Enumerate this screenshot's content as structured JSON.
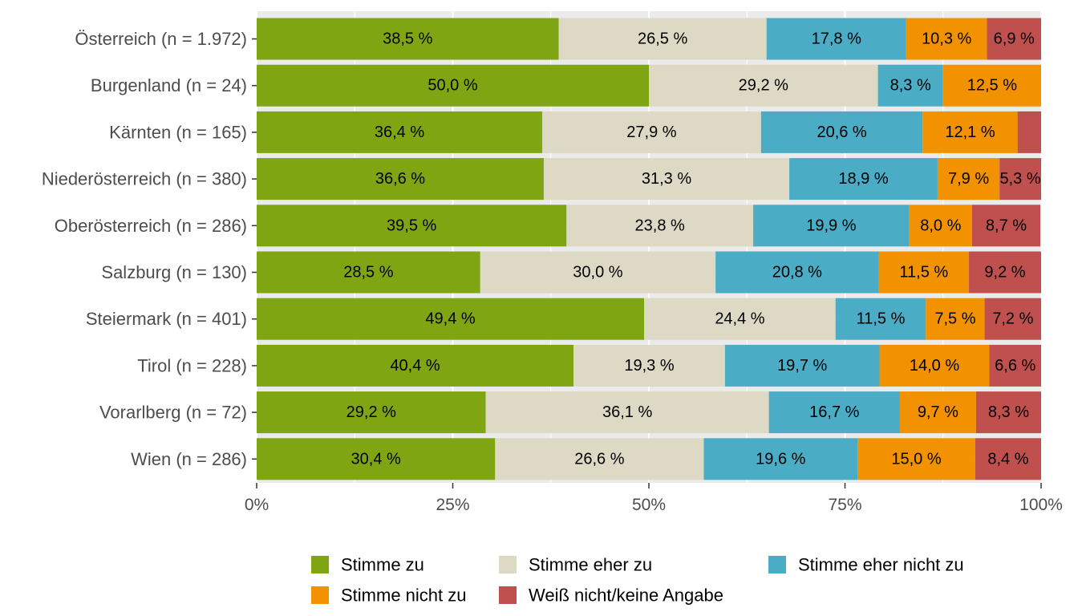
{
  "chart_data": {
    "type": "bar",
    "orientation": "horizontal",
    "stacked": true,
    "normalized": true,
    "categories": [
      "Österreich (n = 1.972)",
      "Burgenland (n = 24)",
      "Kärnten (n = 165)",
      "Niederösterreich (n = 380)",
      "Oberösterreich (n = 286)",
      "Salzburg (n = 130)",
      "Steiermark (n = 401)",
      "Tirol (n = 228)",
      "Vorarlberg (n = 72)",
      "Wien (n = 286)"
    ],
    "series": [
      {
        "name": "Stimme zu",
        "color": "#7fa512",
        "values": [
          38.5,
          50.0,
          36.4,
          36.6,
          39.5,
          28.5,
          49.4,
          40.4,
          29.2,
          30.4
        ],
        "labels": [
          "38,5 %",
          "50,0 %",
          "36,4 %",
          "36,6 %",
          "39,5 %",
          "28,5 %",
          "49,4 %",
          "40,4 %",
          "29,2 %",
          "30,4 %"
        ]
      },
      {
        "name": "Stimme eher zu",
        "color": "#ddd9c5",
        "values": [
          26.5,
          29.2,
          27.9,
          31.3,
          23.8,
          30.0,
          24.4,
          19.3,
          36.1,
          26.6
        ],
        "labels": [
          "26,5 %",
          "29,2 %",
          "27,9 %",
          "31,3 %",
          "23,8 %",
          "30,0 %",
          "24,4 %",
          "19,3 %",
          "36,1 %",
          "26,6 %"
        ]
      },
      {
        "name": "Stimme eher nicht zu",
        "color": "#4bacc6",
        "values": [
          17.8,
          8.3,
          20.6,
          18.9,
          19.9,
          20.8,
          11.5,
          19.7,
          16.7,
          19.6
        ],
        "labels": [
          "17,8 %",
          "8,3 %",
          "20,6 %",
          "18,9 %",
          "19,9 %",
          "20,8 %",
          "11,5 %",
          "19,7 %",
          "16,7 %",
          "19,6 %"
        ]
      },
      {
        "name": "Stimme nicht zu",
        "color": "#f39200",
        "values": [
          10.3,
          12.5,
          12.1,
          7.9,
          8.0,
          11.5,
          7.5,
          14.0,
          9.7,
          15.0
        ],
        "labels": [
          "10,3 %",
          "12,5 %",
          "12,1 %",
          "7,9 %",
          "8,0 %",
          "11,5 %",
          "7,5 %",
          "14,0 %",
          "9,7 %",
          "15,0 %"
        ]
      },
      {
        "name": "Weiß nicht/keine Angabe",
        "color": "#c0504d",
        "values": [
          6.9,
          0.0,
          3.0,
          5.3,
          8.7,
          9.2,
          7.2,
          6.6,
          8.3,
          8.4
        ],
        "labels": [
          "6,9 %",
          "",
          "",
          "5,3 %",
          "8,7 %",
          "9,2 %",
          "7,2 %",
          "6,6 %",
          "8,3 %",
          "8,4 %"
        ]
      }
    ],
    "xticks": [
      0,
      25,
      50,
      75,
      100
    ],
    "xtick_labels": [
      "0%",
      "25%",
      "50%",
      "75%",
      "100%"
    ],
    "xlim": [
      0,
      100
    ],
    "grid": true,
    "legend_position": "bottom",
    "title": "",
    "xlabel": "",
    "ylabel": ""
  }
}
